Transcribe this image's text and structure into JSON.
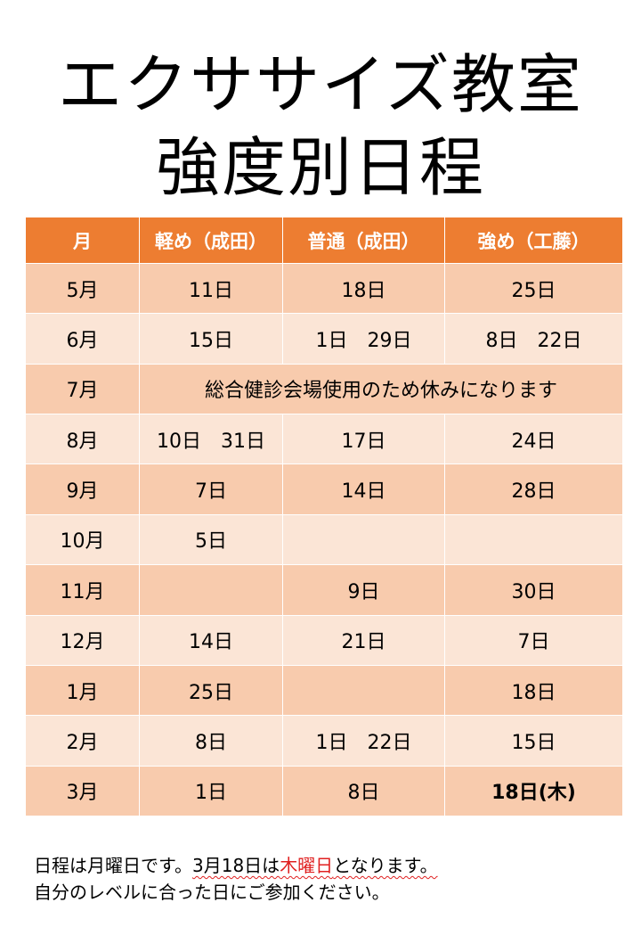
{
  "title": {
    "line1": "エクササイズ教室",
    "line2": "強度別日程"
  },
  "table": {
    "headers": [
      "月",
      "軽め（成田）",
      "普通（成田）",
      "強め（工藤）"
    ],
    "rows": [
      {
        "month": "5月",
        "light": "11日",
        "normal": "18日",
        "strong": "25日"
      },
      {
        "month": "6月",
        "light": "15日",
        "normal": "1日　29日",
        "strong": "8日　22日"
      },
      {
        "month": "7月",
        "note": "総合健診会場使用のため休みになります"
      },
      {
        "month": "8月",
        "light": "10日　31日",
        "normal": "17日",
        "strong": "24日"
      },
      {
        "month": "9月",
        "light": "7日",
        "normal": "14日",
        "strong": "28日"
      },
      {
        "month": "10月",
        "light": "5日",
        "normal": "",
        "strong": ""
      },
      {
        "month": "11月",
        "light": "",
        "normal": "9日",
        "strong": "30日"
      },
      {
        "month": "12月",
        "light": "14日",
        "normal": "21日",
        "strong": "7日"
      },
      {
        "month": "1月",
        "light": "25日",
        "normal": "",
        "strong": "18日"
      },
      {
        "month": "2月",
        "light": "8日",
        "normal": "1日　22日",
        "strong": "15日"
      },
      {
        "month": "3月",
        "light": "1日",
        "normal": "8日",
        "strong": "18日(木)"
      }
    ]
  },
  "note": {
    "line1_a": "日程は月曜日です。",
    "line1_b": "3月18日は",
    "line1_c": "木曜日",
    "line1_d": "となります。",
    "line2": "自分のレベルに合った日にご参加ください。"
  },
  "colors": {
    "header": "#ED7D31",
    "row_dark": "#F8CBAD",
    "row_light": "#FBE5D6",
    "highlight_text": "#E02020"
  }
}
